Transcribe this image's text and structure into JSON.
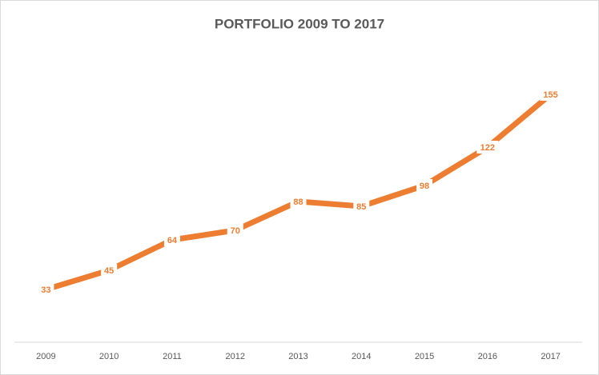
{
  "chart_data": {
    "type": "line",
    "title": "PORTFOLIO 2009 TO 2017",
    "categories": [
      "2009",
      "2010",
      "2011",
      "2012",
      "2013",
      "2014",
      "2015",
      "2016",
      "2017"
    ],
    "values": [
      33,
      45,
      64,
      70,
      88,
      85,
      98,
      122,
      155
    ],
    "color": "#ed7d31",
    "ylim": [
      0,
      180
    ]
  }
}
